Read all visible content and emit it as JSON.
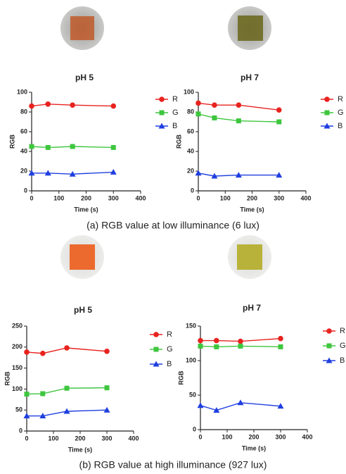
{
  "captions": [
    "(a) RGB value at low illuminance (6 lux)",
    "(b) RGB value at high illuminance (927 lux)"
  ],
  "chart_data": [
    {
      "type": "line",
      "title": "pH 5",
      "x_label": "Time (s)",
      "y_label": "RGB",
      "x": [
        0,
        60,
        150,
        300
      ],
      "xlim": [
        0,
        400
      ],
      "xticks": [
        0,
        100,
        200,
        300,
        400
      ],
      "ylim": [
        0,
        100
      ],
      "yticks": [
        0,
        20,
        40,
        60,
        80,
        100
      ],
      "series": [
        {
          "name": "R",
          "color": "#e8231f",
          "marker": "circle",
          "values": [
            86,
            88,
            87,
            86
          ]
        },
        {
          "name": "G",
          "color": "#3ec63e",
          "marker": "square",
          "values": [
            45,
            44,
            45,
            44
          ]
        },
        {
          "name": "B",
          "color": "#1f3fe0",
          "marker": "triangle",
          "values": [
            18,
            18,
            17,
            19
          ]
        }
      ]
    },
    {
      "type": "line",
      "title": "pH 7",
      "x_label": "Time (s)",
      "y_label": "RGB",
      "x": [
        0,
        60,
        150,
        300
      ],
      "xlim": [
        0,
        400
      ],
      "xticks": [
        0,
        100,
        200,
        300,
        400
      ],
      "ylim": [
        0,
        100
      ],
      "yticks": [
        0,
        20,
        40,
        60,
        80,
        100
      ],
      "series": [
        {
          "name": "R",
          "color": "#e8231f",
          "marker": "circle",
          "values": [
            89,
            87,
            87,
            82
          ]
        },
        {
          "name": "G",
          "color": "#3ec63e",
          "marker": "square",
          "values": [
            78,
            74,
            71,
            70
          ]
        },
        {
          "name": "B",
          "color": "#1f3fe0",
          "marker": "triangle",
          "values": [
            18,
            15,
            16,
            16
          ]
        }
      ]
    },
    {
      "type": "line",
      "title": "pH 5",
      "x_label": "Time (s)",
      "y_label": "RGB",
      "x": [
        0,
        60,
        150,
        300
      ],
      "xlim": [
        0,
        400
      ],
      "xticks": [
        0,
        100,
        200,
        300,
        400
      ],
      "ylim": [
        0,
        250
      ],
      "yticks": [
        0,
        50,
        100,
        150,
        200,
        250
      ],
      "series": [
        {
          "name": "R",
          "color": "#e8231f",
          "marker": "circle",
          "values": [
            188,
            185,
            198,
            190
          ]
        },
        {
          "name": "G",
          "color": "#3ec63e",
          "marker": "square",
          "values": [
            88,
            89,
            102,
            103
          ]
        },
        {
          "name": "B",
          "color": "#1f3fe0",
          "marker": "triangle",
          "values": [
            36,
            36,
            47,
            50
          ]
        }
      ]
    },
    {
      "type": "line",
      "title": "pH 7",
      "x_label": "Time (s)",
      "y_label": "RGB",
      "x": [
        0,
        60,
        150,
        300
      ],
      "xlim": [
        0,
        400
      ],
      "xticks": [
        0,
        100,
        200,
        300,
        400
      ],
      "ylim": [
        0,
        150
      ],
      "yticks": [
        0,
        50,
        100,
        150
      ],
      "series": [
        {
          "name": "R",
          "color": "#e8231f",
          "marker": "circle",
          "values": [
            129,
            129,
            128,
            132
          ]
        },
        {
          "name": "G",
          "color": "#3ec63e",
          "marker": "square",
          "values": [
            121,
            120,
            121,
            120
          ]
        },
        {
          "name": "B",
          "color": "#1f3fe0",
          "marker": "triangle",
          "values": [
            35,
            28,
            39,
            34
          ]
        }
      ]
    }
  ]
}
